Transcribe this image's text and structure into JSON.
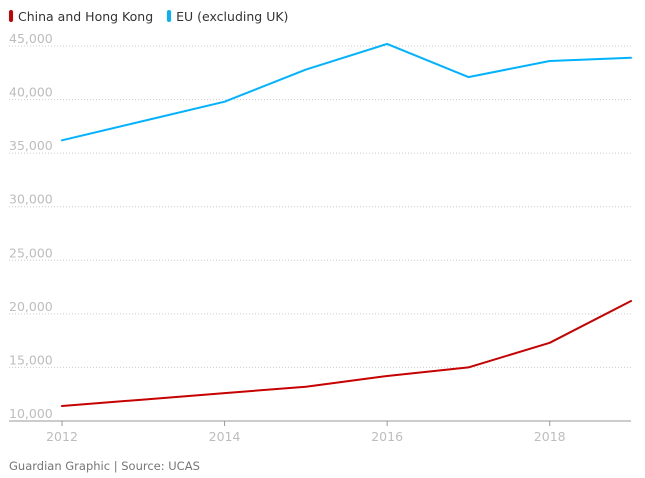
{
  "chart_data": {
    "type": "line",
    "title": "",
    "xlabel": "",
    "ylabel": "",
    "x": [
      2012,
      2013,
      2014,
      2015,
      2016,
      2017,
      2018,
      2019
    ],
    "x_ticks": [
      "2012",
      "2014",
      "2016",
      "2018"
    ],
    "y_ticks": [
      "10,000",
      "15,000",
      "20,000",
      "25,000",
      "30,000",
      "35,000",
      "40,000",
      "45,000"
    ],
    "ylim": [
      10000,
      46000
    ],
    "xlim": [
      2012,
      2019
    ],
    "grid": "horizontal dotted",
    "legend_position": "top-left",
    "series": [
      {
        "name": "China and Hong Kong",
        "color": "#c70000",
        "values": [
          11400,
          12000,
          12600,
          13200,
          14200,
          15000,
          17300,
          21200
        ]
      },
      {
        "name": "EU (excluding UK)",
        "color": "#00b2ff",
        "values": [
          36200,
          38000,
          39800,
          42800,
          45200,
          42100,
          43600,
          43900
        ]
      }
    ]
  },
  "footer": {
    "source": "Guardian Graphic | Source: UCAS"
  }
}
